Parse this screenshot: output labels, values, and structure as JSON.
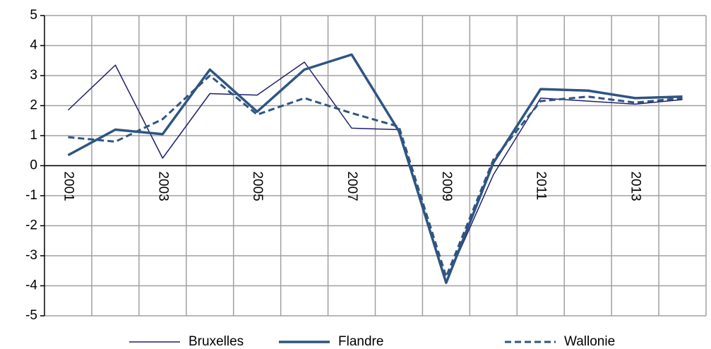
{
  "chart_data": {
    "type": "line",
    "categories": [
      "2001",
      null,
      "2003",
      null,
      "2005",
      null,
      "2007",
      null,
      "2009",
      null,
      "2011",
      null,
      "2013",
      null
    ],
    "series": [
      {
        "name": "Bruxelles",
        "color": "#1f1f6e",
        "line_width": 1.5,
        "line_style": "solid",
        "values": [
          1.85,
          3.35,
          0.25,
          2.4,
          2.35,
          3.45,
          1.25,
          1.2,
          -3.85,
          -0.3,
          2.25,
          2.15,
          2.05,
          2.2
        ]
      },
      {
        "name": "Flandre",
        "color": "#2f5581",
        "line_width": 3.5,
        "line_style": "solid",
        "values": [
          0.35,
          1.2,
          1.05,
          3.2,
          1.8,
          3.2,
          3.7,
          1.15,
          -3.9,
          0.1,
          2.55,
          2.5,
          2.25,
          2.3
        ]
      },
      {
        "name": "Wallonie",
        "color": "#2f5581",
        "line_width": 3,
        "line_style": "dashed",
        "values": [
          0.95,
          0.8,
          1.55,
          3.0,
          1.7,
          2.25,
          1.75,
          1.3,
          -3.7,
          0.2,
          2.15,
          2.3,
          2.1,
          2.25
        ]
      }
    ],
    "ylim": [
      -5,
      5
    ],
    "yticks": [
      -5,
      -4,
      -3,
      -2,
      -1,
      0,
      1,
      2,
      3,
      4,
      5
    ],
    "grid": true,
    "legend": "bottom"
  }
}
